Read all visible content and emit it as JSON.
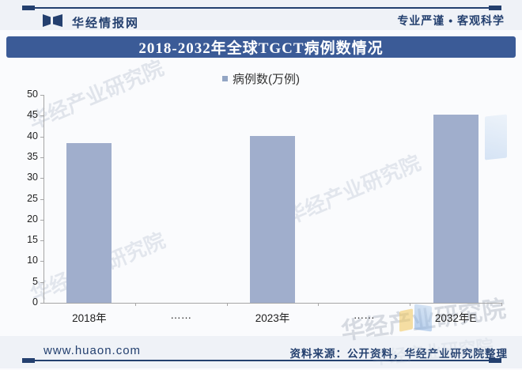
{
  "header": {
    "brand": "华经情报网",
    "slogan": "专业严谨 • 客观科学"
  },
  "banner": {
    "title": "2018-2032年全球TGCT病例数情况"
  },
  "legend": {
    "label": "病例数(万例)"
  },
  "chart_data": {
    "type": "bar",
    "title": "2018-2032年全球TGCT病例数情况",
    "categories": [
      "2018年",
      "……",
      "2023年",
      "……",
      "2032年E"
    ],
    "values": [
      38.4,
      null,
      40.2,
      null,
      45.2
    ],
    "series": [
      {
        "name": "病例数(万例)",
        "values": [
          38.4,
          null,
          40.2,
          null,
          45.2
        ]
      }
    ],
    "unit": "万例",
    "xlabel": "",
    "ylabel": "",
    "ylim": [
      0,
      50
    ],
    "yticks": [
      0,
      5,
      10,
      15,
      20,
      25,
      30,
      35,
      40,
      45,
      50
    ],
    "grid": false,
    "legend_position": "top-center",
    "bar_color": "#a0aecc",
    "legend_marker_color": "#92a5c4"
  },
  "watermark": {
    "text": "华经产业研究院"
  },
  "footer": {
    "url": "www.huaon.com",
    "source": "资料来源：公开资料，华经产业研究院整理"
  },
  "colors": {
    "banner_bg": "#3b5b97",
    "band_bg": "#eff2f7",
    "accent_navy": "#24406f",
    "bar": "#a0aecc",
    "axis": "#a6a6a6"
  }
}
